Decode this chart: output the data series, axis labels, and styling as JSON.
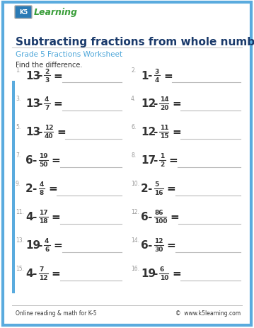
{
  "title": "Subtracting fractions from whole numbers",
  "subtitle": "Grade 5 Fractions Worksheet",
  "instruction": "Find the difference.",
  "footer_left": "Online reading & math for K-5",
  "footer_right": "©  www.k5learning.com",
  "problems": [
    {
      "num": 1,
      "whole": "13",
      "numer": "2",
      "denom": "3"
    },
    {
      "num": 2,
      "whole": "1",
      "numer": "3",
      "denom": "4"
    },
    {
      "num": 3,
      "whole": "13",
      "numer": "4",
      "denom": "7"
    },
    {
      "num": 4,
      "whole": "12",
      "numer": "14",
      "denom": "20"
    },
    {
      "num": 5,
      "whole": "13",
      "numer": "12",
      "denom": "40"
    },
    {
      "num": 6,
      "whole": "12",
      "numer": "11",
      "denom": "15"
    },
    {
      "num": 7,
      "whole": "6",
      "numer": "19",
      "denom": "50"
    },
    {
      "num": 8,
      "whole": "17",
      "numer": "1",
      "denom": "2"
    },
    {
      "num": 9,
      "whole": "2",
      "numer": "4",
      "denom": "8"
    },
    {
      "num": 10,
      "whole": "2",
      "numer": "5",
      "denom": "16"
    },
    {
      "num": 11,
      "whole": "4",
      "numer": "17",
      "denom": "18"
    },
    {
      "num": 12,
      "whole": "6",
      "numer": "86",
      "denom": "100"
    },
    {
      "num": 13,
      "whole": "19",
      "numer": "4",
      "denom": "6"
    },
    {
      "num": 14,
      "whole": "6",
      "numer": "12",
      "denom": "30"
    },
    {
      "num": 15,
      "whole": "4",
      "numer": "7",
      "denom": "12"
    },
    {
      "num": 16,
      "whole": "19",
      "numer": "6",
      "denom": "10"
    }
  ],
  "border_color": "#5aabde",
  "title_color": "#1a3a6b",
  "subtitle_color": "#4da6d9",
  "text_color": "#333333",
  "number_color": "#999999",
  "line_color": "#bbbbbb",
  "bg_color": "#ffffff",
  "left_bar_color": "#5aabde",
  "logo_k5_bg": "#2a7ab5",
  "logo_text_color": "#3a9e3a"
}
